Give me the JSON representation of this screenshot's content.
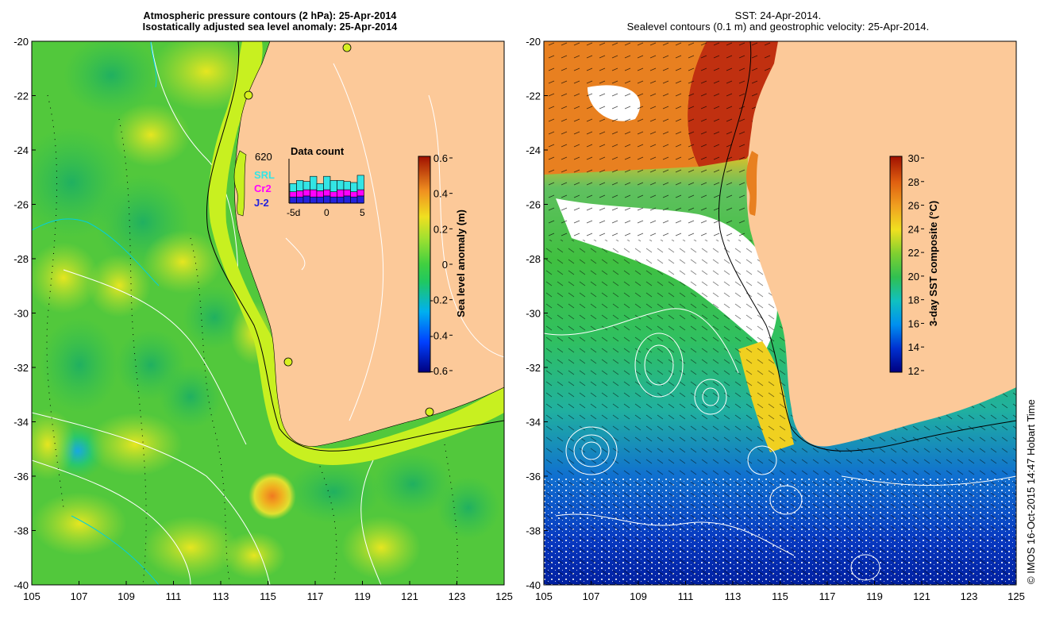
{
  "left_panel": {
    "title_line1": "Atmospheric pressure contours (2 hPa): 25-Apr-2014",
    "title_line2": "Isostatically adjusted sea level anomaly: 25-Apr-2014",
    "lat_ticks": [
      "-20",
      "-22",
      "-24",
      "-26",
      "-28",
      "-30",
      "-32",
      "-34",
      "-36",
      "-38",
      "-40"
    ],
    "lon_ticks": [
      "105",
      "107",
      "109",
      "111",
      "113",
      "115",
      "117",
      "119",
      "121",
      "123",
      "125"
    ],
    "colorbar": {
      "label": "Sea level anomaly (m)",
      "ticks": [
        "0.6",
        "0.4",
        "0.2",
        "0",
        "-0.2",
        "-0.4",
        "-0.6"
      ],
      "range": [
        -0.6,
        0.6
      ]
    },
    "data_count": {
      "title": "Data count",
      "total": "620",
      "x_tick_left": "-5d",
      "x_tick_mid": "0",
      "x_tick_right": "5",
      "legend": [
        {
          "label": "SRL",
          "color": "#33e5e5"
        },
        {
          "label": "Cr2",
          "color": "#ff00ff"
        },
        {
          "label": "J-2",
          "color": "#2222dd"
        }
      ],
      "bars": [
        {
          "j2": 6,
          "cr2": 5,
          "srl": 8
        },
        {
          "j2": 6,
          "cr2": 6,
          "srl": 10
        },
        {
          "j2": 7,
          "cr2": 6,
          "srl": 8
        },
        {
          "j2": 6,
          "cr2": 7,
          "srl": 13
        },
        {
          "j2": 6,
          "cr2": 6,
          "srl": 7
        },
        {
          "j2": 7,
          "cr2": 6,
          "srl": 13
        },
        {
          "j2": 6,
          "cr2": 5,
          "srl": 11
        },
        {
          "j2": 6,
          "cr2": 7,
          "srl": 9
        },
        {
          "j2": 7,
          "cr2": 6,
          "srl": 8
        },
        {
          "j2": 6,
          "cr2": 5,
          "srl": 9
        },
        {
          "j2": 7,
          "cr2": 6,
          "srl": 14
        }
      ]
    }
  },
  "right_panel": {
    "title_line1": "SST: 24-Apr-2014.",
    "title_line2": "Sealevel contours (0.1 m) and geostrophic velocity: 25-Apr-2014.",
    "lat_ticks": [
      "-20",
      "-22",
      "-24",
      "-26",
      "-28",
      "-30",
      "-32",
      "-34",
      "-36",
      "-38",
      "-40"
    ],
    "lon_ticks": [
      "105",
      "107",
      "109",
      "111",
      "113",
      "115",
      "117",
      "119",
      "121",
      "123",
      "125"
    ],
    "colorbar": {
      "label": "3-day SST composite (°C)",
      "ticks": [
        "30",
        "28",
        "26",
        "24",
        "22",
        "20",
        "18",
        "16",
        "14",
        "12"
      ],
      "range": [
        12,
        30
      ]
    }
  },
  "credit": "© IMOS 16-Oct-2015 14:47 Hobart Time",
  "colors": {
    "land": "#fcc999",
    "coast": "#000000",
    "contour": "#ffffff",
    "shelf": "#00c0ff"
  }
}
